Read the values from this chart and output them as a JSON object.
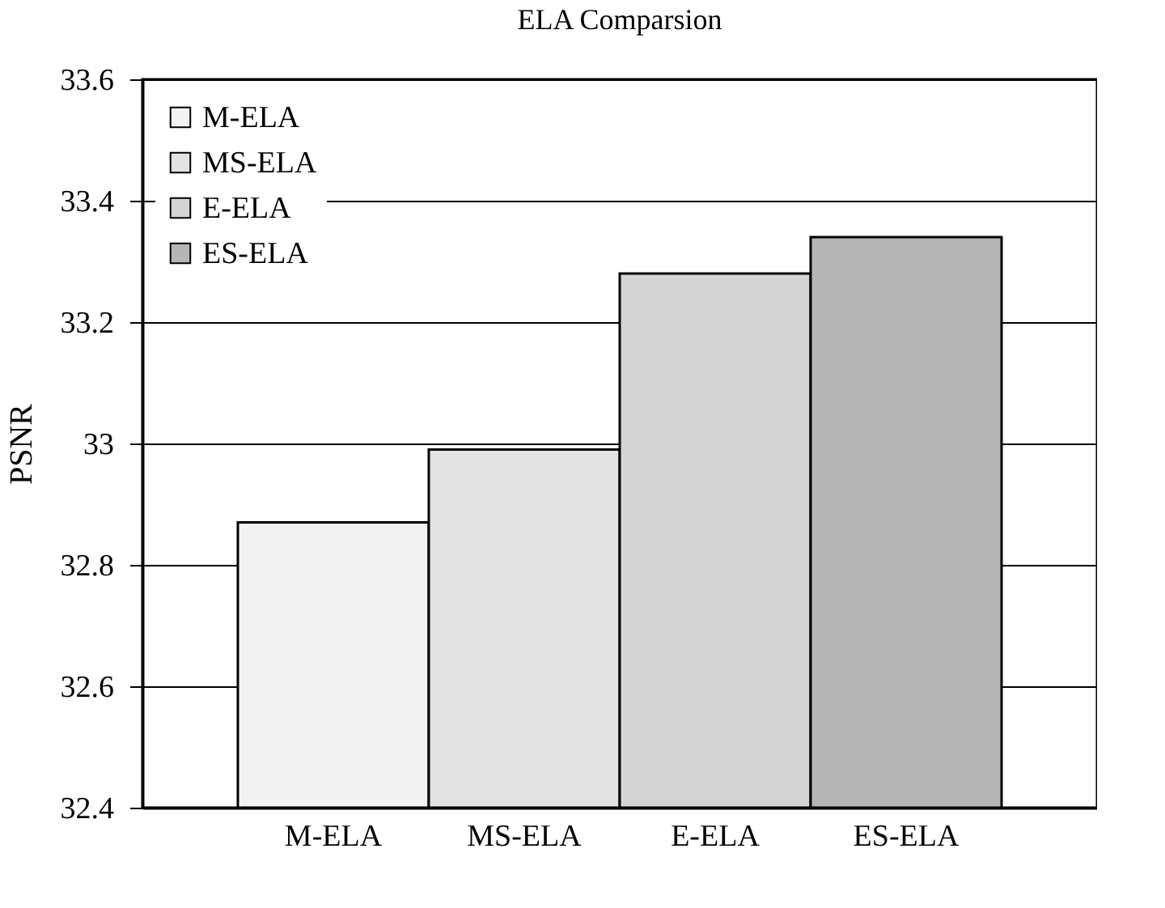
{
  "chart_data": {
    "type": "bar",
    "title": "ELA  Comparsion",
    "ylabel": "PSNR",
    "categories": [
      "M-ELA",
      "MS-ELA",
      "E-ELA",
      "ES-ELA"
    ],
    "series": [
      {
        "name": "M-ELA",
        "color": "#f2f2f2",
        "values": [
          32.87,
          null,
          null,
          null
        ]
      },
      {
        "name": "MS-ELA",
        "color": "#e3e3e3",
        "values": [
          null,
          32.99,
          null,
          null
        ]
      },
      {
        "name": "E-ELA",
        "color": "#d4d4d4",
        "values": [
          null,
          null,
          33.28,
          null
        ]
      },
      {
        "name": "ES-ELA",
        "color": "#b5b5b5",
        "values": [
          null,
          null,
          null,
          33.34
        ]
      }
    ],
    "ylim": [
      32.4,
      33.6
    ],
    "yticks": [
      32.4,
      32.6,
      32.8,
      33,
      33.2,
      33.4,
      33.6
    ],
    "grid": "y",
    "legend": "top left"
  }
}
